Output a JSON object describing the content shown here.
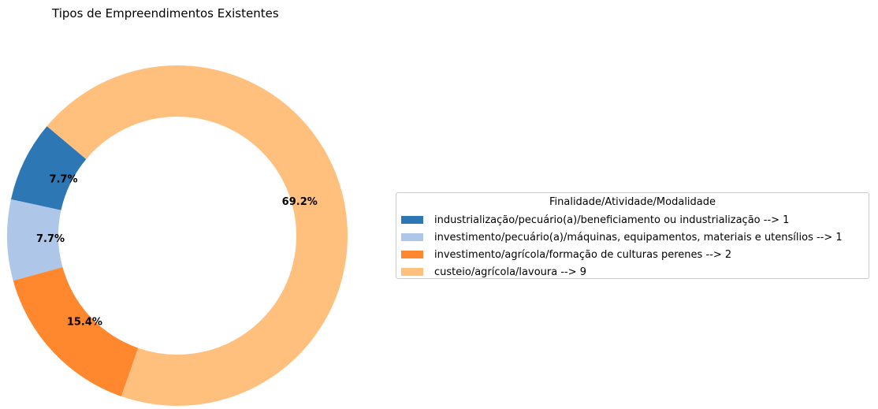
{
  "chart_data": {
    "type": "pie",
    "variant": "donut",
    "title": "Tipos de Empreendimentos Existentes",
    "legend_title": "Finalidade/Atividade/Modalidade",
    "legend_placement": "center-right",
    "start_angle_deg": 140,
    "direction": "counterclockwise",
    "slices": [
      {
        "label": "industrialização/pecuário(a)/beneficiamento ou industrialização --> 1",
        "value": 1,
        "percent_label": "7.7%",
        "color": "#2c77b4"
      },
      {
        "label": "investimento/pecuário(a)/máquinas, equipamentos, materiais e utensílios --> 1",
        "value": 1,
        "percent_label": "7.7%",
        "color": "#aec7e8"
      },
      {
        "label": "investimento/agrícola/formação de culturas perenes --> 2",
        "value": 2,
        "percent_label": "15.4%",
        "color": "#ff872d"
      },
      {
        "label": "custeio/agrícola/lavoura --> 9",
        "value": 9,
        "percent_label": "69.2%",
        "color": "#ffbf7d"
      }
    ]
  }
}
